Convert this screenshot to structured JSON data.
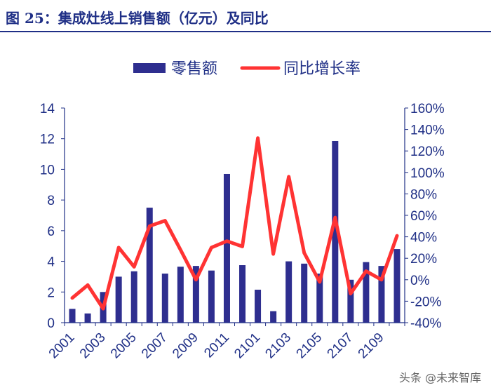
{
  "title": "图 25：集成灶线上销售额（亿元）及同比",
  "watermark": "头条 @未来智库",
  "chart_data": {
    "type": "bar+line",
    "categories": [
      "2001",
      "2002",
      "2003",
      "2004",
      "2005",
      "2006",
      "2007",
      "2008",
      "2009",
      "2010",
      "2011",
      "2012",
      "2101",
      "2102",
      "2103",
      "2104",
      "2105",
      "2106",
      "2107",
      "2108",
      "2109",
      "2110"
    ],
    "x_tick_labels": [
      "2001",
      "2003",
      "2005",
      "2007",
      "2009",
      "2011",
      "2101",
      "2103",
      "2105",
      "2107",
      "2109"
    ],
    "series": [
      {
        "name": "零售额",
        "type": "bar",
        "axis": "left",
        "color": "#2e2e8f",
        "values": [
          0.9,
          0.6,
          2.0,
          3.0,
          3.35,
          7.5,
          3.2,
          3.65,
          3.7,
          3.4,
          9.7,
          3.75,
          2.15,
          0.75,
          4.0,
          3.85,
          3.2,
          11.85,
          2.8,
          3.95,
          3.7,
          4.8
        ]
      },
      {
        "name": "同比增长率",
        "type": "line",
        "axis": "right",
        "color": "#ff3333",
        "values": [
          -0.17,
          -0.05,
          -0.27,
          0.3,
          0.12,
          0.5,
          0.55,
          0.28,
          0.0,
          0.3,
          0.36,
          0.31,
          1.32,
          0.24,
          0.96,
          0.25,
          -0.02,
          0.58,
          -0.13,
          0.08,
          0.0,
          0.41
        ]
      }
    ],
    "y_left": {
      "min": 0,
      "max": 14,
      "ticks": [
        0,
        2,
        4,
        6,
        8,
        10,
        12,
        14
      ]
    },
    "y_right": {
      "min": -0.4,
      "max": 1.6,
      "ticks": [
        "-40%",
        "-20%",
        "0%",
        "20%",
        "40%",
        "60%",
        "80%",
        "100%",
        "120%",
        "140%",
        "160%"
      ]
    },
    "legend_position": "top-center",
    "grid": false
  }
}
